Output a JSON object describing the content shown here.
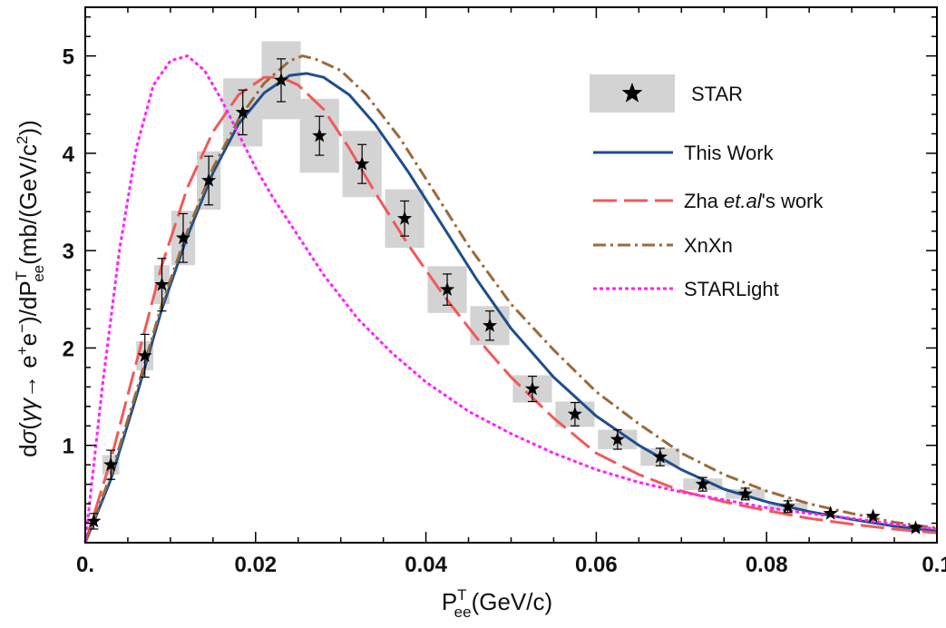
{
  "chart_data": {
    "type": "line",
    "xlabel": {
      "main": "P",
      "sup": "T",
      "sub": "ee",
      "unit": "(GeV/c)"
    },
    "ylabel": {
      "p1": "d",
      "sigma": "σ",
      "p2": "(",
      "gg": "γγ",
      "arrow": "→ e",
      "plus": "+",
      "e2": "e",
      "minus": "−",
      "p3": ")/dP",
      "sup": "T",
      "sub": "ee",
      "p4": "(mb/(GeV/c",
      "two": "2",
      "p5": "))"
    },
    "xlim": [
      0,
      0.1
    ],
    "ylim": [
      0,
      5.5
    ],
    "xticks": [
      0,
      0.02,
      0.04,
      0.06,
      0.08,
      0.1
    ],
    "xtick_labels": [
      "0.",
      "0.02",
      "0.04",
      "0.06",
      "0.08",
      "0.1"
    ],
    "yticks": [
      1,
      2,
      3,
      4,
      5
    ],
    "ytick_labels": [
      "1",
      "2",
      "3",
      "4",
      "5"
    ],
    "legend": {
      "position": "top-right",
      "star": "STAR",
      "this_work": "This Work",
      "zha_pre": "Zha ",
      "zha_italic": "et.al",
      "zha_post": "'s work",
      "xnxn": "XnXn",
      "starlight": "STARLight"
    },
    "star_data": {
      "x": [
        0.001,
        0.003,
        0.007,
        0.009,
        0.0115,
        0.0145,
        0.0185,
        0.023,
        0.0275,
        0.0325,
        0.0375,
        0.0425,
        0.0475,
        0.0525,
        0.0575,
        0.0625,
        0.0675,
        0.0725,
        0.0775,
        0.0825,
        0.0875,
        0.0925,
        0.0975
      ],
      "y": [
        0.22,
        0.8,
        1.92,
        2.65,
        3.13,
        3.72,
        4.42,
        4.75,
        4.18,
        3.89,
        3.33,
        2.6,
        2.23,
        1.58,
        1.32,
        1.06,
        0.88,
        0.6,
        0.5,
        0.37,
        0.3,
        0.27,
        0.15
      ],
      "err": [
        0.08,
        0.15,
        0.22,
        0.27,
        0.25,
        0.25,
        0.23,
        0.22,
        0.2,
        0.2,
        0.18,
        0.16,
        0.15,
        0.13,
        0.12,
        0.1,
        0.09,
        0.07,
        0.06,
        0.06,
        0.0,
        0.0,
        0.03
      ],
      "sys_w": [
        0.0,
        0.001,
        0.001,
        0.0009,
        0.0014,
        0.0014,
        0.0023,
        0.0023,
        0.0023,
        0.0023,
        0.0023,
        0.0023,
        0.0023,
        0.0023,
        0.0023,
        0.0023,
        0.0023,
        0.0023,
        0.0023,
        0.0023,
        0.0,
        0.0,
        0.0
      ],
      "sys_h": [
        0.0,
        0.1,
        0.15,
        0.2,
        0.28,
        0.3,
        0.35,
        0.4,
        0.38,
        0.34,
        0.3,
        0.24,
        0.2,
        0.14,
        0.13,
        0.1,
        0.09,
        0.06,
        0.05,
        0.04,
        0.0,
        0.0,
        0.0
      ]
    },
    "series": [
      {
        "key": "this_work",
        "color": "#1f4e8c",
        "dash": "",
        "x": [
          0,
          0.003,
          0.006,
          0.009,
          0.012,
          0.015,
          0.018,
          0.021,
          0.024,
          0.026,
          0.028,
          0.031,
          0.034,
          0.038,
          0.042,
          0.046,
          0.05,
          0.055,
          0.06,
          0.065,
          0.07,
          0.075,
          0.08,
          0.085,
          0.09,
          0.095,
          0.1
        ],
        "y": [
          0,
          0.65,
          1.5,
          2.4,
          3.15,
          3.8,
          4.3,
          4.62,
          4.8,
          4.82,
          4.78,
          4.6,
          4.3,
          3.8,
          3.25,
          2.7,
          2.2,
          1.7,
          1.3,
          1.0,
          0.75,
          0.55,
          0.42,
          0.32,
          0.24,
          0.17,
          0.12
        ]
      },
      {
        "key": "zha",
        "color": "#f05a5a",
        "dash": "26,8",
        "x": [
          0,
          0.003,
          0.006,
          0.009,
          0.012,
          0.015,
          0.018,
          0.021,
          0.023,
          0.025,
          0.028,
          0.031,
          0.034,
          0.038,
          0.042,
          0.046,
          0.05,
          0.055,
          0.06,
          0.065,
          0.07,
          0.075,
          0.08,
          0.085,
          0.09,
          0.095,
          0.1
        ],
        "y": [
          0,
          0.85,
          1.85,
          2.85,
          3.65,
          4.22,
          4.6,
          4.78,
          4.78,
          4.7,
          4.45,
          4.05,
          3.6,
          3.05,
          2.55,
          2.1,
          1.7,
          1.28,
          0.92,
          0.7,
          0.53,
          0.42,
          0.33,
          0.25,
          0.19,
          0.14,
          0.1
        ]
      },
      {
        "key": "xnxn",
        "color": "#9b6a3a",
        "dash": "14,5,3,5",
        "x": [
          0,
          0.003,
          0.006,
          0.009,
          0.012,
          0.015,
          0.018,
          0.021,
          0.024,
          0.0255,
          0.027,
          0.03,
          0.033,
          0.037,
          0.041,
          0.045,
          0.05,
          0.055,
          0.06,
          0.065,
          0.07,
          0.075,
          0.08,
          0.085,
          0.09,
          0.095,
          0.1
        ],
        "y": [
          0,
          0.7,
          1.55,
          2.45,
          3.2,
          3.85,
          4.35,
          4.72,
          4.95,
          5.0,
          4.97,
          4.85,
          4.6,
          4.15,
          3.6,
          3.05,
          2.45,
          1.98,
          1.55,
          1.22,
          0.92,
          0.7,
          0.53,
          0.4,
          0.3,
          0.21,
          0.15
        ]
      },
      {
        "key": "starlight",
        "color": "#ff22ff",
        "dash": "4,3",
        "x": [
          0,
          0.002,
          0.004,
          0.006,
          0.008,
          0.01,
          0.012,
          0.014,
          0.016,
          0.018,
          0.02,
          0.022,
          0.025,
          0.028,
          0.032,
          0.036,
          0.04,
          0.045,
          0.05,
          0.055,
          0.06,
          0.065,
          0.07,
          0.075,
          0.08,
          0.085,
          0.09,
          0.095,
          0.1
        ],
        "y": [
          0,
          1.6,
          3.0,
          4.05,
          4.7,
          4.95,
          5.0,
          4.85,
          4.55,
          4.2,
          3.85,
          3.55,
          3.15,
          2.75,
          2.3,
          1.95,
          1.65,
          1.35,
          1.12,
          0.92,
          0.75,
          0.62,
          0.52,
          0.44,
          0.36,
          0.3,
          0.25,
          0.19,
          0.14
        ]
      }
    ]
  },
  "colors": {
    "star_box": "#d3d3d3",
    "axis": "#000000"
  }
}
